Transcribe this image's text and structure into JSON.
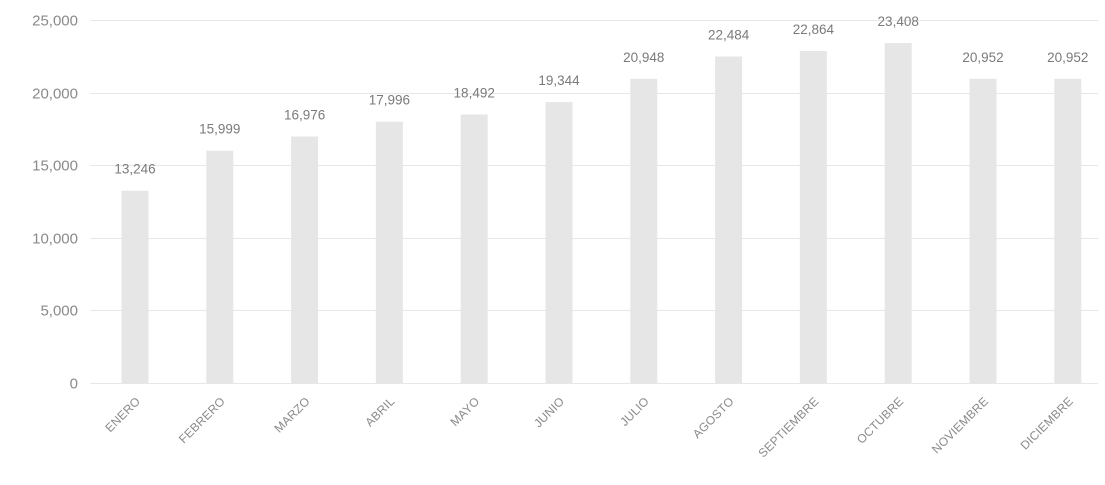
{
  "chart_data": {
    "type": "bar",
    "title": "",
    "xlabel": "",
    "ylabel": "",
    "categories": [
      "ENERO",
      "FEBRERO",
      "MARZO",
      "ABRIL",
      "MAYO",
      "JUNIO",
      "JULIO",
      "AGOSTO",
      "SEPTIEMBRE",
      "OCTUBRE",
      "NOVIEMBRE",
      "DICIEMBRE"
    ],
    "values": [
      13246,
      15999,
      16976,
      17996,
      18492,
      19344,
      20948,
      22484,
      22864,
      23408,
      20952,
      20952
    ],
    "data_labels": [
      "13,246",
      "15,999",
      "16,976",
      "17,996",
      "18,492",
      "19,344",
      "20,948",
      "22,484",
      "22,864",
      "23,408",
      "20,952",
      "20,952"
    ],
    "ylim": [
      0,
      25000
    ],
    "yticks": [
      0,
      5000,
      10000,
      15000,
      20000,
      25000
    ],
    "ytick_labels": [
      "0",
      "5,000",
      "10,000",
      "15,000",
      "20,000",
      "25,000"
    ],
    "grid": true,
    "legend": "none",
    "colors": {
      "bar": "#e6e6e6",
      "grid": "#e7e7e7",
      "text": "#8a8a8a",
      "background": "#ffffff"
    }
  }
}
